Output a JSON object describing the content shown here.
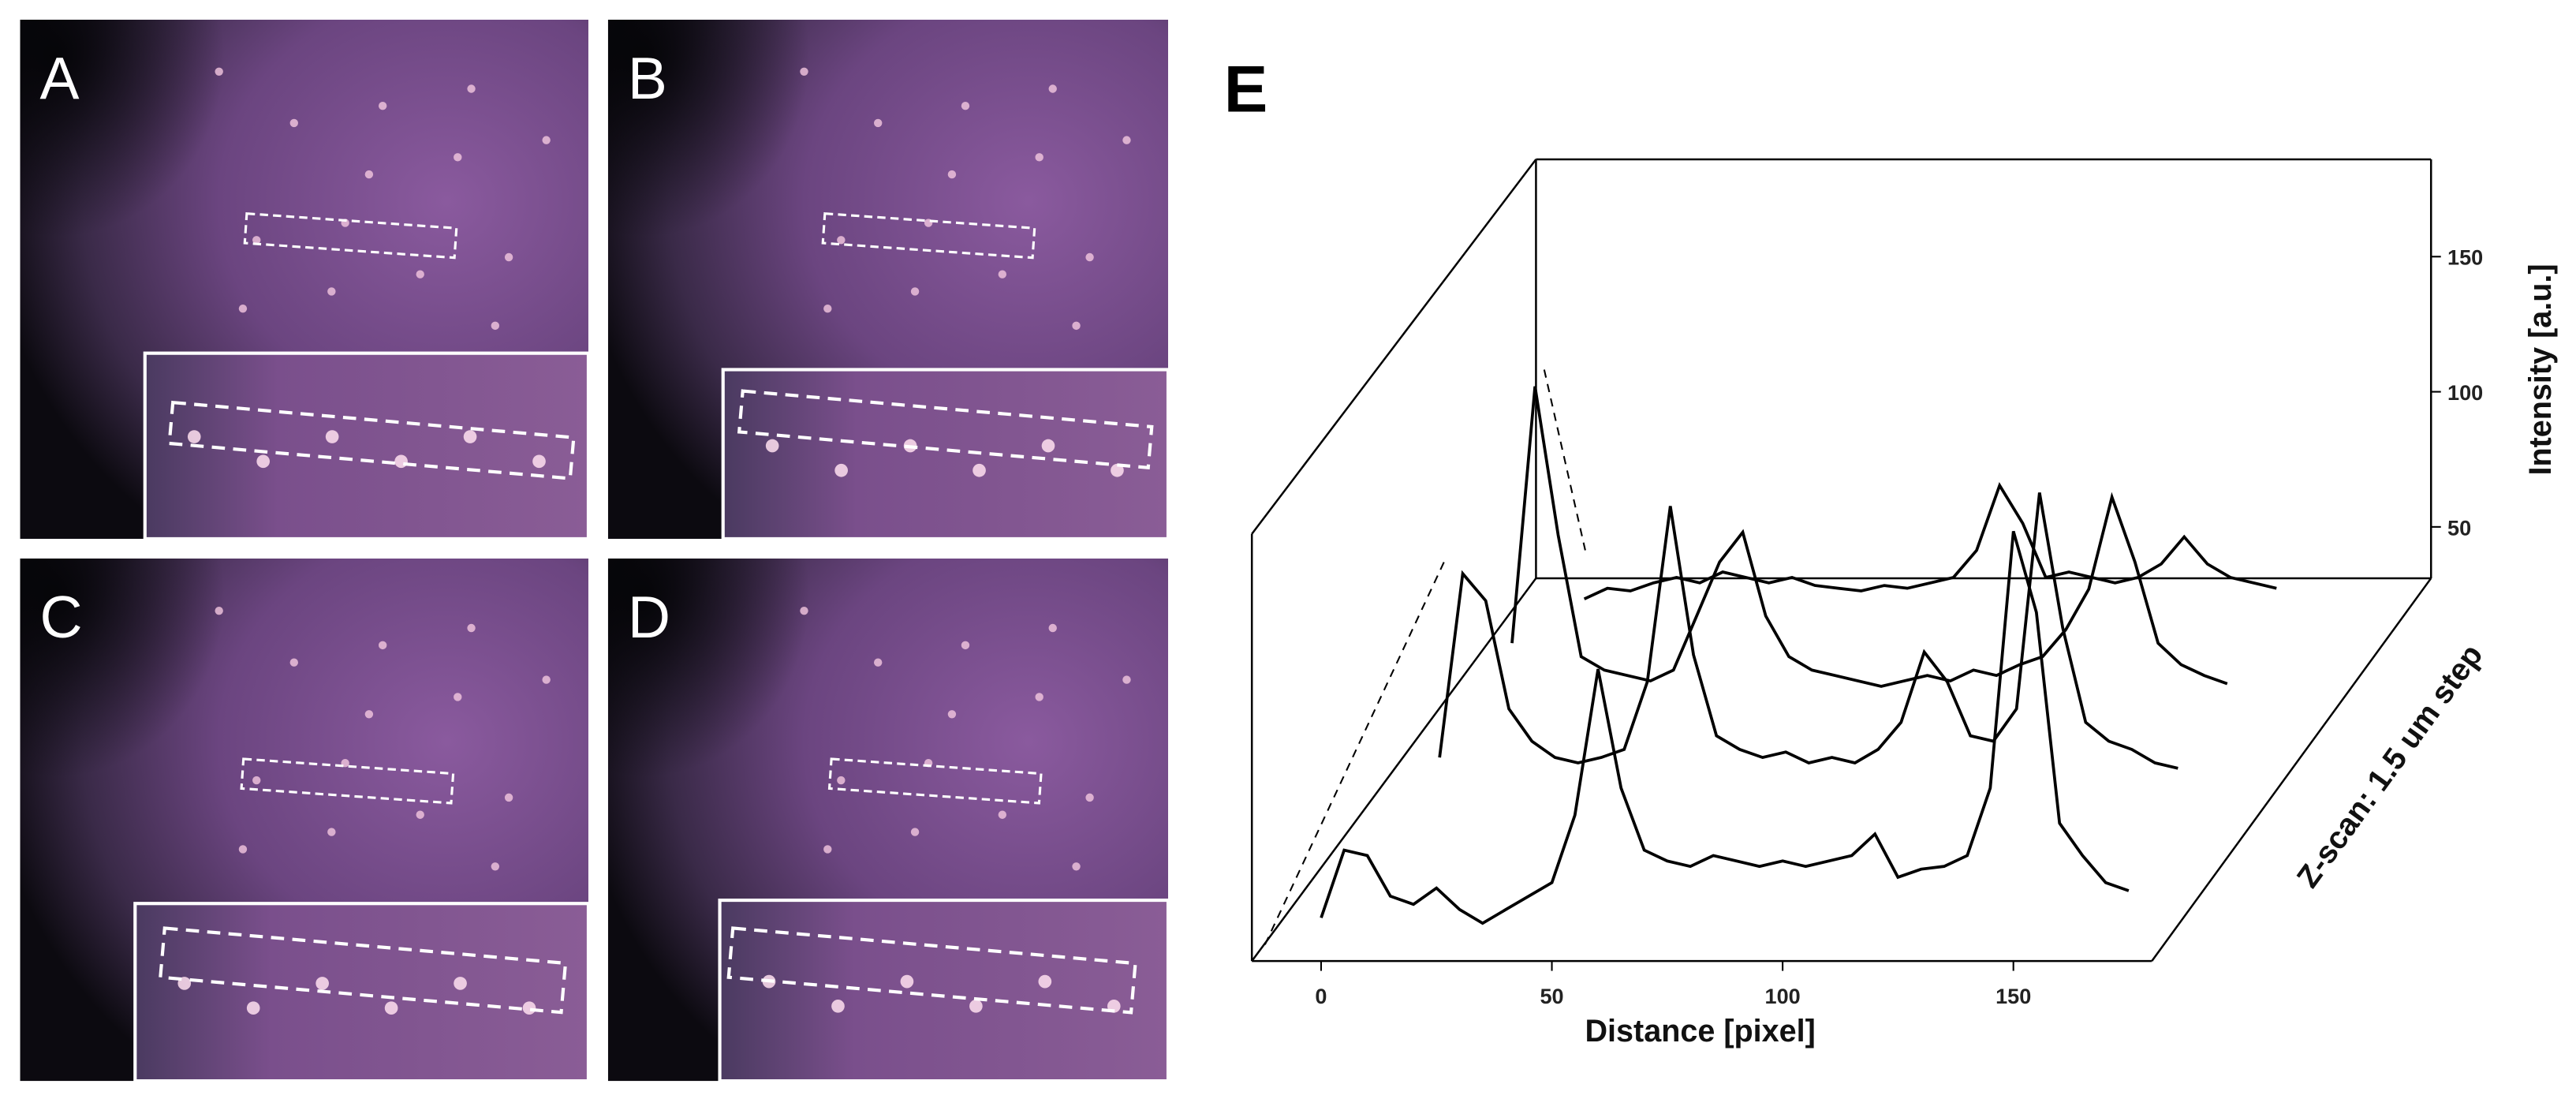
{
  "panels": [
    {
      "label": "A"
    },
    {
      "label": "B"
    },
    {
      "label": "C"
    },
    {
      "label": "D"
    }
  ],
  "chart_data": {
    "type": "waterfall",
    "label": "E",
    "xlabel": "Distance [pixel]",
    "ylabel": "Intensity [a.u.]",
    "zlabel": "Z-scan: 1.5 um step",
    "x": [
      0,
      5,
      10,
      15,
      20,
      25,
      30,
      35,
      40,
      45,
      50,
      55,
      60,
      65,
      70,
      75,
      80,
      85,
      90,
      95,
      100,
      105,
      110,
      115,
      120,
      125,
      130,
      135,
      140,
      145,
      150,
      155,
      160,
      165,
      170,
      175
    ],
    "xlim": [
      -15,
      180
    ],
    "xticks": [
      0,
      50,
      100,
      150
    ],
    "ylim": [
      31,
      186
    ],
    "yticks": [
      50,
      100,
      150
    ],
    "series": [
      {
        "color": "#000000",
        "values": [
          47,
          72,
          70,
          55,
          52,
          58,
          50,
          45,
          50,
          55,
          60,
          85,
          139,
          95,
          72,
          68,
          66,
          70,
          68,
          66,
          68,
          66,
          68,
          70,
          78,
          62,
          65,
          66,
          70,
          95,
          190,
          160,
          82,
          70,
          60,
          57
        ]
      },
      {
        "color": "#000000",
        "values": [
          null,
          null,
          null,
          82,
          150,
          140,
          100,
          88,
          82,
          80,
          82,
          85,
          110,
          175,
          120,
          90,
          85,
          82,
          84,
          80,
          82,
          80,
          85,
          95,
          121,
          110,
          90,
          88,
          100,
          180,
          130,
          95,
          88,
          85,
          80,
          78
        ]
      },
      {
        "color": "#000000",
        "values": [
          null,
          null,
          null,
          null,
          100,
          195,
          140,
          95,
          90,
          88,
          86,
          90,
          110,
          130,
          141,
          110,
          95,
          90,
          88,
          86,
          84,
          86,
          88,
          86,
          90,
          88,
          92,
          95,
          105,
          120,
          154,
          130,
          100,
          92,
          88,
          85
        ]
      },
      {
        "color": "#000000",
        "values": [
          null,
          null,
          null,
          null,
          null,
          92,
          96,
          95,
          98,
          100,
          98,
          102,
          100,
          98,
          100,
          97,
          96,
          95,
          97,
          96,
          98,
          100,
          110,
          134,
          120,
          100,
          102,
          100,
          98,
          100,
          105,
          115,
          105,
          100,
          98,
          96
        ]
      }
    ]
  }
}
